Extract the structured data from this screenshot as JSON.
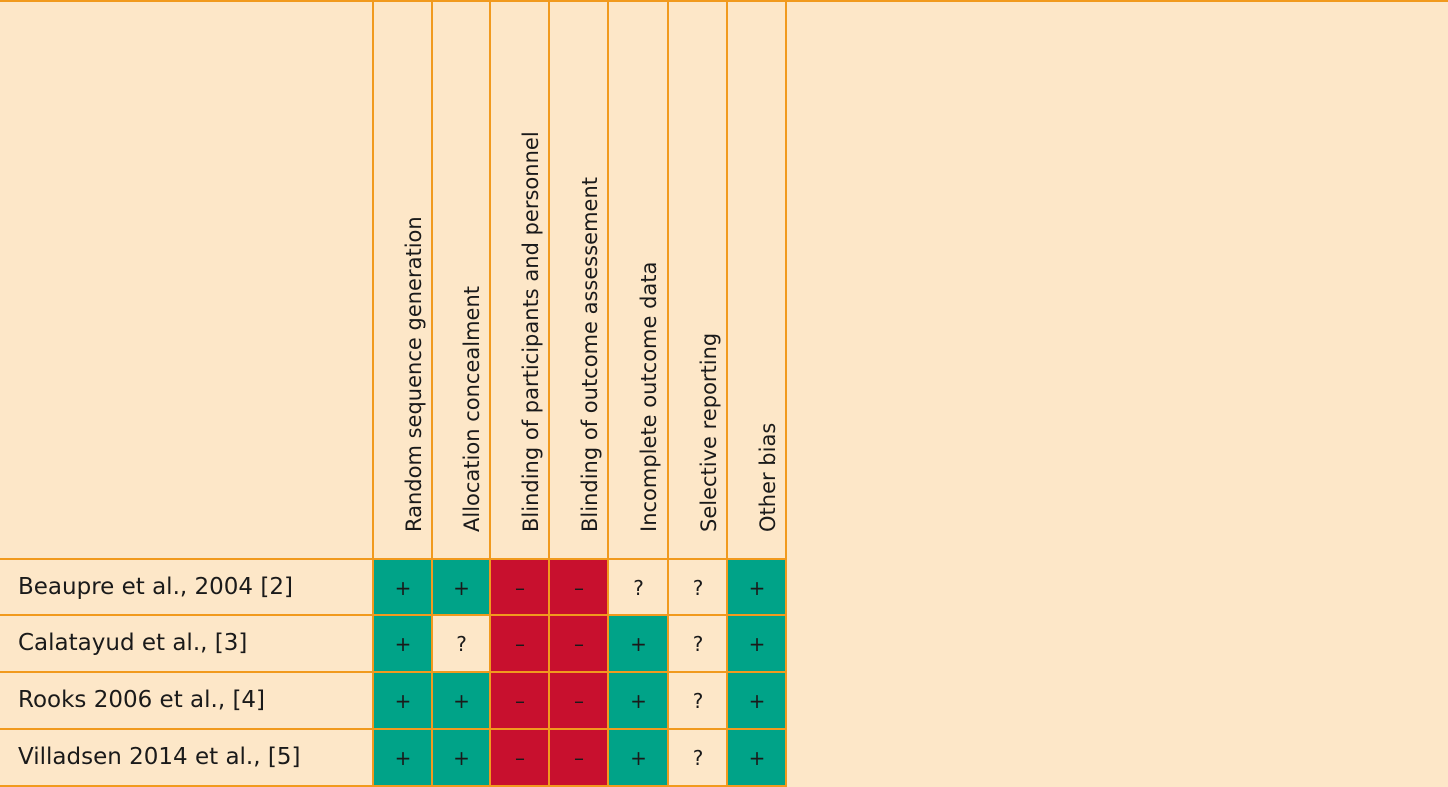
{
  "domains": [
    "Random sequence generation",
    "Allocation concealment",
    "Blinding of participants and personnel",
    "Blinding of outcome assessement",
    "Incomplete outcome data",
    "Selective reporting",
    "Other bias"
  ],
  "studies": [
    {
      "label": "Beaupre et al., 2004 [2]",
      "judgements": [
        "+",
        "+",
        "–",
        "–",
        "?",
        "?",
        "+"
      ]
    },
    {
      "label": "Calatayud et al., [3]",
      "judgements": [
        "+",
        "?",
        "–",
        "–",
        "+",
        "?",
        "+"
      ]
    },
    {
      "label": "Rooks 2006 et al., [4]",
      "judgements": [
        "+",
        "+",
        "–",
        "–",
        "+",
        "?",
        "+"
      ]
    },
    {
      "label": "Villadsen 2014 et al., [5]",
      "judgements": [
        "+",
        "+",
        "–",
        "–",
        "+",
        "?",
        "+"
      ]
    }
  ],
  "colors": {
    "low": "#00a388",
    "high": "#c8102e",
    "unclear": "#fde7c8",
    "grid": "#f19a1e",
    "background": "#fde7c8"
  }
}
